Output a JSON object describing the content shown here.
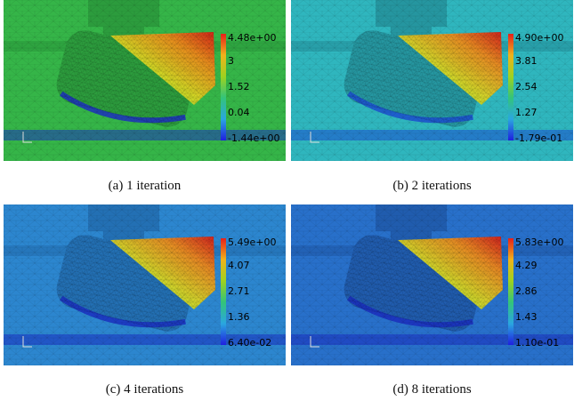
{
  "panels": [
    {
      "bg": "#35b548",
      "bg_dark": "#2c9c3d",
      "trail": "#1c2fbf",
      "caption": "(a)  1 iteration",
      "labels": [
        "4.48e+00",
        "3",
        "1.52",
        "0.04",
        "-1.44e+00"
      ]
    },
    {
      "bg": "#2fb6be",
      "bg_dark": "#2596a0",
      "trail": "#1b4fcf",
      "caption": "(b)  2 iterations",
      "labels": [
        "4.90e+00",
        "3.81",
        "2.54",
        "1.27",
        "-1.79e-01"
      ]
    },
    {
      "bg": "#2c86cf",
      "bg_dark": "#2370b4",
      "trail": "#1a2fc0",
      "caption": "(c)  4 iterations",
      "labels": [
        "5.49e+00",
        "4.07",
        "2.71",
        "1.36",
        "6.40e-02"
      ]
    },
    {
      "bg": "#2870ca",
      "bg_dark": "#205cae",
      "trail": "#1a2dbd",
      "caption": "(d)  8 iterations",
      "labels": [
        "5.83e+00",
        "4.29",
        "2.86",
        "1.43",
        "1.10e-01"
      ]
    }
  ]
}
